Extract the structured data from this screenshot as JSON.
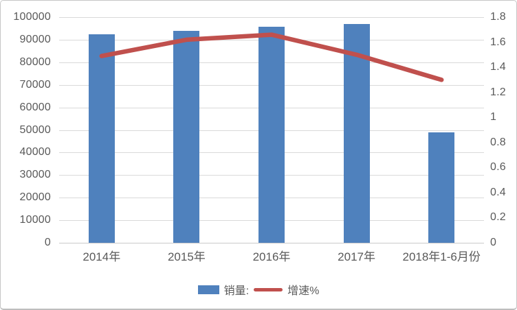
{
  "chart_data": {
    "type": "bar",
    "subtype": "combo-bar-line-dual-axis",
    "title": "",
    "categories": [
      "2014年",
      "2015年",
      "2016年",
      "2017年",
      "2018年1-6月份"
    ],
    "series": [
      {
        "name": "销量:",
        "type": "bar",
        "axis": "left",
        "color": "#4F81BD",
        "values": [
          92300,
          94000,
          95800,
          96900,
          48800
        ]
      },
      {
        "name": "增速%",
        "type": "line",
        "axis": "right",
        "color": "#C0504D",
        "values": [
          1.49,
          1.62,
          1.66,
          1.5,
          1.3
        ]
      }
    ],
    "left_axis": {
      "min": 0,
      "max": 100000,
      "step": 10000,
      "tick_labels": [
        "0",
        "10000",
        "20000",
        "30000",
        "40000",
        "50000",
        "60000",
        "70000",
        "80000",
        "90000",
        "100000"
      ]
    },
    "right_axis": {
      "min": 0,
      "max": 1.8,
      "step": 0.2,
      "tick_labels": [
        "0",
        "0.2",
        "0.4",
        "0.6",
        "0.8",
        "1",
        "1.2",
        "1.4",
        "1.6",
        "1.8"
      ]
    },
    "grid": true,
    "legend_position": "bottom"
  },
  "colors": {
    "bar": "#4F81BD",
    "line": "#C0504D",
    "gridline": "#D9D9D9",
    "axis_line": "#C9C9C9",
    "text": "#595959",
    "border": "#C6C6C6",
    "background": "#FFFFFF"
  }
}
